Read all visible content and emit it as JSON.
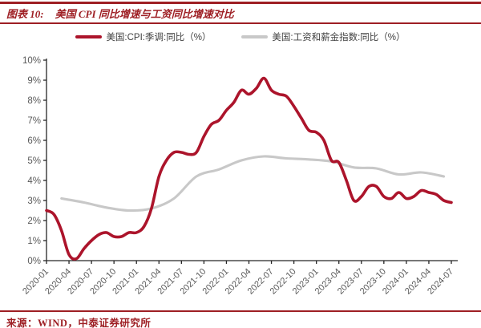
{
  "header": {
    "figure_label": "图表 10:",
    "title": "美国 CPI 同比增速与工资同比增速对比"
  },
  "footer": {
    "source": "来源：WIND，中泰证券研究所"
  },
  "colors": {
    "accent_red": "#9e1f24",
    "cpi_line": "#ac142b",
    "wage_line": "#c8c8c8",
    "axis": "#262626",
    "tick_label": "#595959",
    "legend_text": "#3f3f3f"
  },
  "chart_data": {
    "type": "line",
    "title": "美国 CPI 同比增速与工资同比增速对比",
    "xlabel": "",
    "ylabel": "",
    "ylim": [
      0,
      10
    ],
    "grid": false,
    "legend_position": "top",
    "y_tick_labels": [
      "0%",
      "1%",
      "2%",
      "3%",
      "4%",
      "5%",
      "6%",
      "7%",
      "8%",
      "9%",
      "10%"
    ],
    "x_tick_labels": [
      "2020-01",
      "2020-04",
      "2020-07",
      "2020-10",
      "2021-01",
      "2021-04",
      "2021-07",
      "2021-10",
      "2022-01",
      "2022-04",
      "2022-07",
      "2022-10",
      "2023-01",
      "2023-04",
      "2023-07",
      "2023-10",
      "2024-01",
      "2024-04",
      "2024-07"
    ],
    "x_range": [
      "2020-01",
      "2024-07"
    ],
    "series": [
      {
        "name": "美国:CPI:季调:同比（%）",
        "color": "#ac142b",
        "start": "2020-01",
        "interval_months": 1,
        "values": [
          2.5,
          2.3,
          1.5,
          0.3,
          0.1,
          0.6,
          1.0,
          1.3,
          1.4,
          1.2,
          1.2,
          1.4,
          1.4,
          1.7,
          2.6,
          4.2,
          5.0,
          5.4,
          5.4,
          5.3,
          5.4,
          6.2,
          6.8,
          7.0,
          7.5,
          7.9,
          8.5,
          8.3,
          8.6,
          9.1,
          8.5,
          8.3,
          8.2,
          7.7,
          7.1,
          6.5,
          6.4,
          6.0,
          5.0,
          4.9,
          4.0,
          3.0,
          3.2,
          3.7,
          3.7,
          3.2,
          3.1,
          3.4,
          3.1,
          3.2,
          3.5,
          3.4,
          3.3,
          3.0,
          2.9
        ]
      },
      {
        "name": "美国:工资和薪金指数:同比（%）",
        "color": "#c8c8c8",
        "start": "2020-03",
        "interval_months": 3,
        "values": [
          3.1,
          2.9,
          2.65,
          2.5,
          2.6,
          3.1,
          4.2,
          4.55,
          5.0,
          5.2,
          5.1,
          5.05,
          4.95,
          4.65,
          4.6,
          4.3,
          4.4,
          4.2
        ]
      }
    ]
  }
}
